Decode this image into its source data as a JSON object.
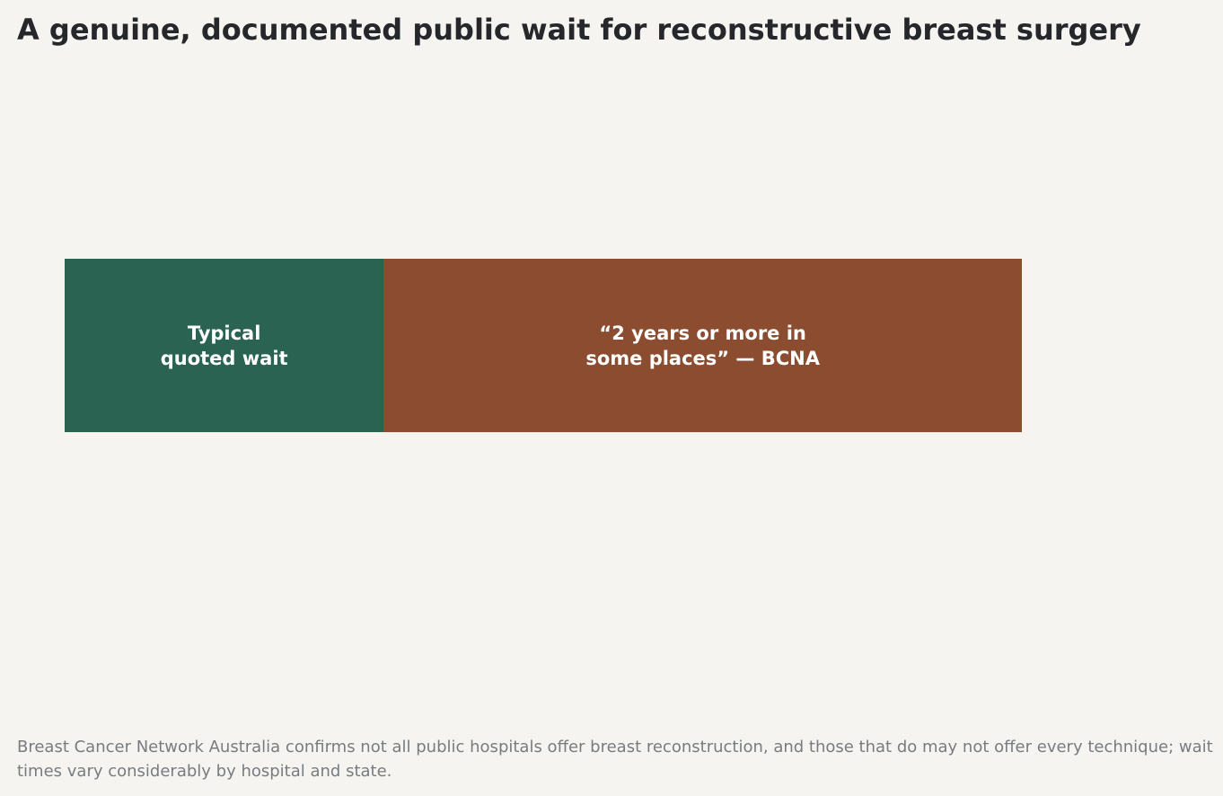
{
  "chart_data": {
    "type": "bar",
    "orientation": "horizontal",
    "stacked": true,
    "title": "A genuine, documented public wait for reconstructive breast surgery",
    "series": [
      {
        "name": "Typical\nquoted wait",
        "color": "#2a6351",
        "values": [
          1
        ]
      },
      {
        "name": "“2 years or more in\nsome places” — BCNA",
        "color": "#8b4c30",
        "values": [
          2
        ]
      }
    ],
    "footnote": "Breast Cancer Network Australia confirms not all public hospitals offer breast reconstruction, and those that do may not offer every technique; wait times vary considerably by hospital and state."
  }
}
